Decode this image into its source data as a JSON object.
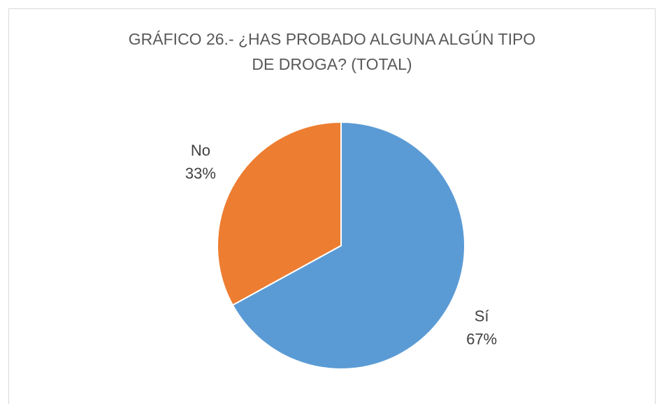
{
  "chart_data": {
    "type": "pie",
    "title": "GRÁFICO 26.- ¿HAS PROBADO ALGUNA ALGÚN TIPO DE DROGA? (TOTAL)",
    "categories": [
      "Sí",
      "No"
    ],
    "values": [
      67,
      33
    ],
    "value_labels": [
      "67%",
      "33%"
    ],
    "colors": [
      "#5b9bd5",
      "#ed7d31"
    ]
  }
}
